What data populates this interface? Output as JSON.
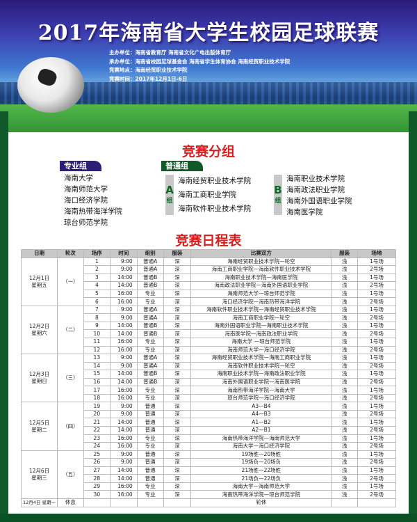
{
  "header": {
    "title": "2017年海南省大学生校园足球联赛",
    "info": [
      "主办单位：海南省教育厅  海南省文化广电出版体育厅",
      "承办单位：海南省校园足球基金会  海南省学生体育协会  海南经贸职业技术学院",
      "竞赛地点：海南经贸职业技术学院",
      "竞赛时间：2017年12月1日-6日"
    ]
  },
  "groups": {
    "title": "竞赛分组",
    "pro": {
      "label": "专业组",
      "teams": [
        "海南大学",
        "海南师范大学",
        "海口经济学院",
        "海南热带海洋学院",
        "琼台师范学院"
      ]
    },
    "general": {
      "label": "普通组",
      "a": {
        "letter": "A",
        "suffix": "组",
        "teams": [
          "海南经贸职业技术学院",
          "海南工商职业学院",
          "海南软件职业技术学院"
        ]
      },
      "b": {
        "letter": "B",
        "suffix": "组",
        "teams": [
          "海南职业技术学院",
          "海南政法职业学院",
          "海南外国语职业学院",
          "海南医学院"
        ]
      }
    }
  },
  "colors": {
    "pro_tag": "#2b1e78",
    "general_tag": "#0f5a28",
    "heading": "#d81e1e"
  },
  "schedule": {
    "title": "竞赛日程表",
    "columns": [
      "日期",
      "轮次",
      "场序",
      "时间",
      "组别",
      "服装",
      "比赛双方",
      "服装",
      "场地"
    ],
    "days": [
      {
        "date": "12月1日",
        "weekday": "星期五",
        "round": "（一）",
        "rows": [
          [
            "1",
            "9:00",
            "普通A",
            "深",
            "海南经贸职业技术学院—轮空",
            "浅",
            "1号场"
          ],
          [
            "2",
            "9:00",
            "普通A",
            "深",
            "海南工商职业学院—海南软件职业技术学院",
            "浅",
            "2号场"
          ],
          [
            "3",
            "14:00",
            "普通B",
            "深",
            "海南职业技术学院—海南医学院",
            "浅",
            "1号场"
          ],
          [
            "4",
            "14:00",
            "普通B",
            "深",
            "海南政法职业学院—海南外国语职业学院",
            "浅",
            "2号场"
          ],
          [
            "5",
            "16:00",
            "专业",
            "深",
            "海南师范大学—琼台师范学院",
            "浅",
            "1号场"
          ],
          [
            "6",
            "16:00",
            "专业",
            "深",
            "海口经济学院—海南热带海洋学院",
            "浅",
            "2号场"
          ]
        ]
      },
      {
        "date": "12月2日",
        "weekday": "星期六",
        "round": "（二）",
        "rows": [
          [
            "7",
            "9:00",
            "普通A",
            "深",
            "海南软件职业技术学院—海南经贸职业技术学院",
            "浅",
            "1号场"
          ],
          [
            "8",
            "9:00",
            "普通A",
            "深",
            "海南工商职业学院—轮空",
            "浅",
            "2号场"
          ],
          [
            "9",
            "14:00",
            "普通B",
            "深",
            "海南外国语职业学院—海南职业技术学院",
            "浅",
            "1号场"
          ],
          [
            "10",
            "14:00",
            "普通B",
            "深",
            "海南医学院—海南政法职业学院",
            "浅",
            "2号场"
          ],
          [
            "11",
            "16:00",
            "专业",
            "深",
            "海南大学 —琼台师范学院",
            "浅",
            "1号场"
          ],
          [
            "12",
            "16:00",
            "专业",
            "深",
            "海南师范大学—海口经济学院",
            "浅",
            "2号场"
          ]
        ]
      },
      {
        "date": "12月3日",
        "weekday": "星期日",
        "round": "（三）",
        "rows": [
          [
            "13",
            "9:00",
            "普通A",
            "深",
            "海南经贸职业技术学院—海南工商职业学院",
            "浅",
            "1号场"
          ],
          [
            "14",
            "9:00",
            "普通A",
            "深",
            "海南软件职业技术学院—轮空",
            "浅",
            "2号场"
          ],
          [
            "15",
            "14:00",
            "普通B",
            "深",
            "海南职业技术学院—海南政法职业学院",
            "浅",
            "1号场"
          ],
          [
            "16",
            "14:00",
            "普通B",
            "深",
            "海南外国语职业学院—海南医学院",
            "浅",
            "2号场"
          ],
          [
            "17",
            "16:00",
            "专业",
            "深",
            "海南热带海洋学院—海南大学",
            "浅",
            "1号场"
          ],
          [
            "18",
            "16:00",
            "专业",
            "深",
            "琼台师范学院—海口经济学院",
            "浅",
            "2号场"
          ]
        ]
      },
      {
        "date": "12月5日",
        "weekday": "星期二",
        "round": "（四）",
        "rows": [
          [
            "19",
            "9:00",
            "普通",
            "深",
            "A3—B4",
            "浅",
            "1号场"
          ],
          [
            "20",
            "9:00",
            "普通",
            "深",
            "A4—B3",
            "浅",
            "2号场"
          ],
          [
            "21",
            "14:00",
            "普通",
            "深",
            "A1—B2",
            "浅",
            "1号场"
          ],
          [
            "22",
            "14:00",
            "普通",
            "深",
            "A2—B1",
            "浅",
            "2号场"
          ],
          [
            "23",
            "16:00",
            "专业",
            "深",
            "海南热带海洋学院—海南师范大学",
            "浅",
            "1号场"
          ],
          [
            "24",
            "16:00",
            "专业",
            "深",
            "海南大学—海口经济学院",
            "浅",
            "2号场"
          ]
        ]
      },
      {
        "date": "12月6日",
        "weekday": "星期三",
        "round": "（五）",
        "rows": [
          [
            "25",
            "9:00",
            "普通",
            "深",
            "19场胜—20场胜",
            "浅",
            "1号场"
          ],
          [
            "26",
            "9:00",
            "普通",
            "深",
            "19场负—20场负",
            "浅",
            "2号场"
          ],
          [
            "27",
            "14:00",
            "普通",
            "深",
            "21场胜—22场胜",
            "浅",
            "1号场"
          ],
          [
            "28",
            "14:00",
            "普通",
            "深",
            "21场负—22场负",
            "浅",
            "2号场"
          ],
          [
            "29",
            "16:00",
            "专业",
            "深",
            "海南大学—海南师范大学",
            "浅",
            "1号场"
          ],
          [
            "30",
            "16:00",
            "专业",
            "深",
            "海南热带海洋学院—琼台师范学院",
            "浅",
            "2号场"
          ]
        ]
      }
    ],
    "rest": {
      "date": "12月4日 星期一",
      "round": "休息",
      "note": "轮休"
    }
  }
}
